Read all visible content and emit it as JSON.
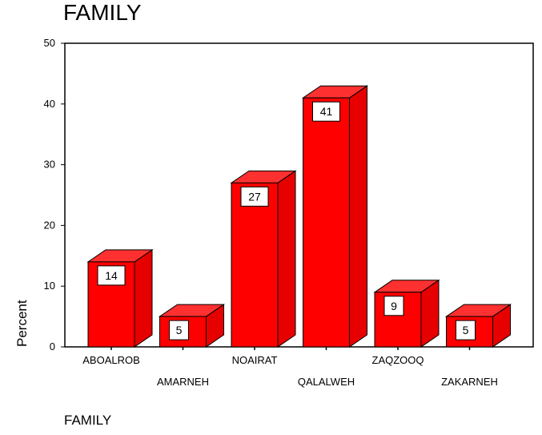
{
  "chart_data": {
    "type": "bar",
    "title": "FAMILY",
    "xlabel": "FAMILY",
    "ylabel": "Percent",
    "categories": [
      "ABOALROB",
      "AMARNEH",
      "NOAIRAT",
      "QALALWEH",
      "ZAQZOOQ",
      "ZAKARNEH"
    ],
    "values": [
      14,
      5,
      27,
      41,
      9,
      5
    ],
    "data_labels": [
      "14",
      "5",
      "27",
      "41",
      "9",
      "5"
    ],
    "ylim": [
      0,
      50
    ],
    "yticks": [
      "0",
      "10",
      "20",
      "30",
      "40",
      "50"
    ],
    "grid": false,
    "legend": "none",
    "style": "3d",
    "bar_colors": {
      "front": "#ff0000",
      "top": "#ff3030",
      "side": "#e60000",
      "edge": "#000000"
    }
  }
}
